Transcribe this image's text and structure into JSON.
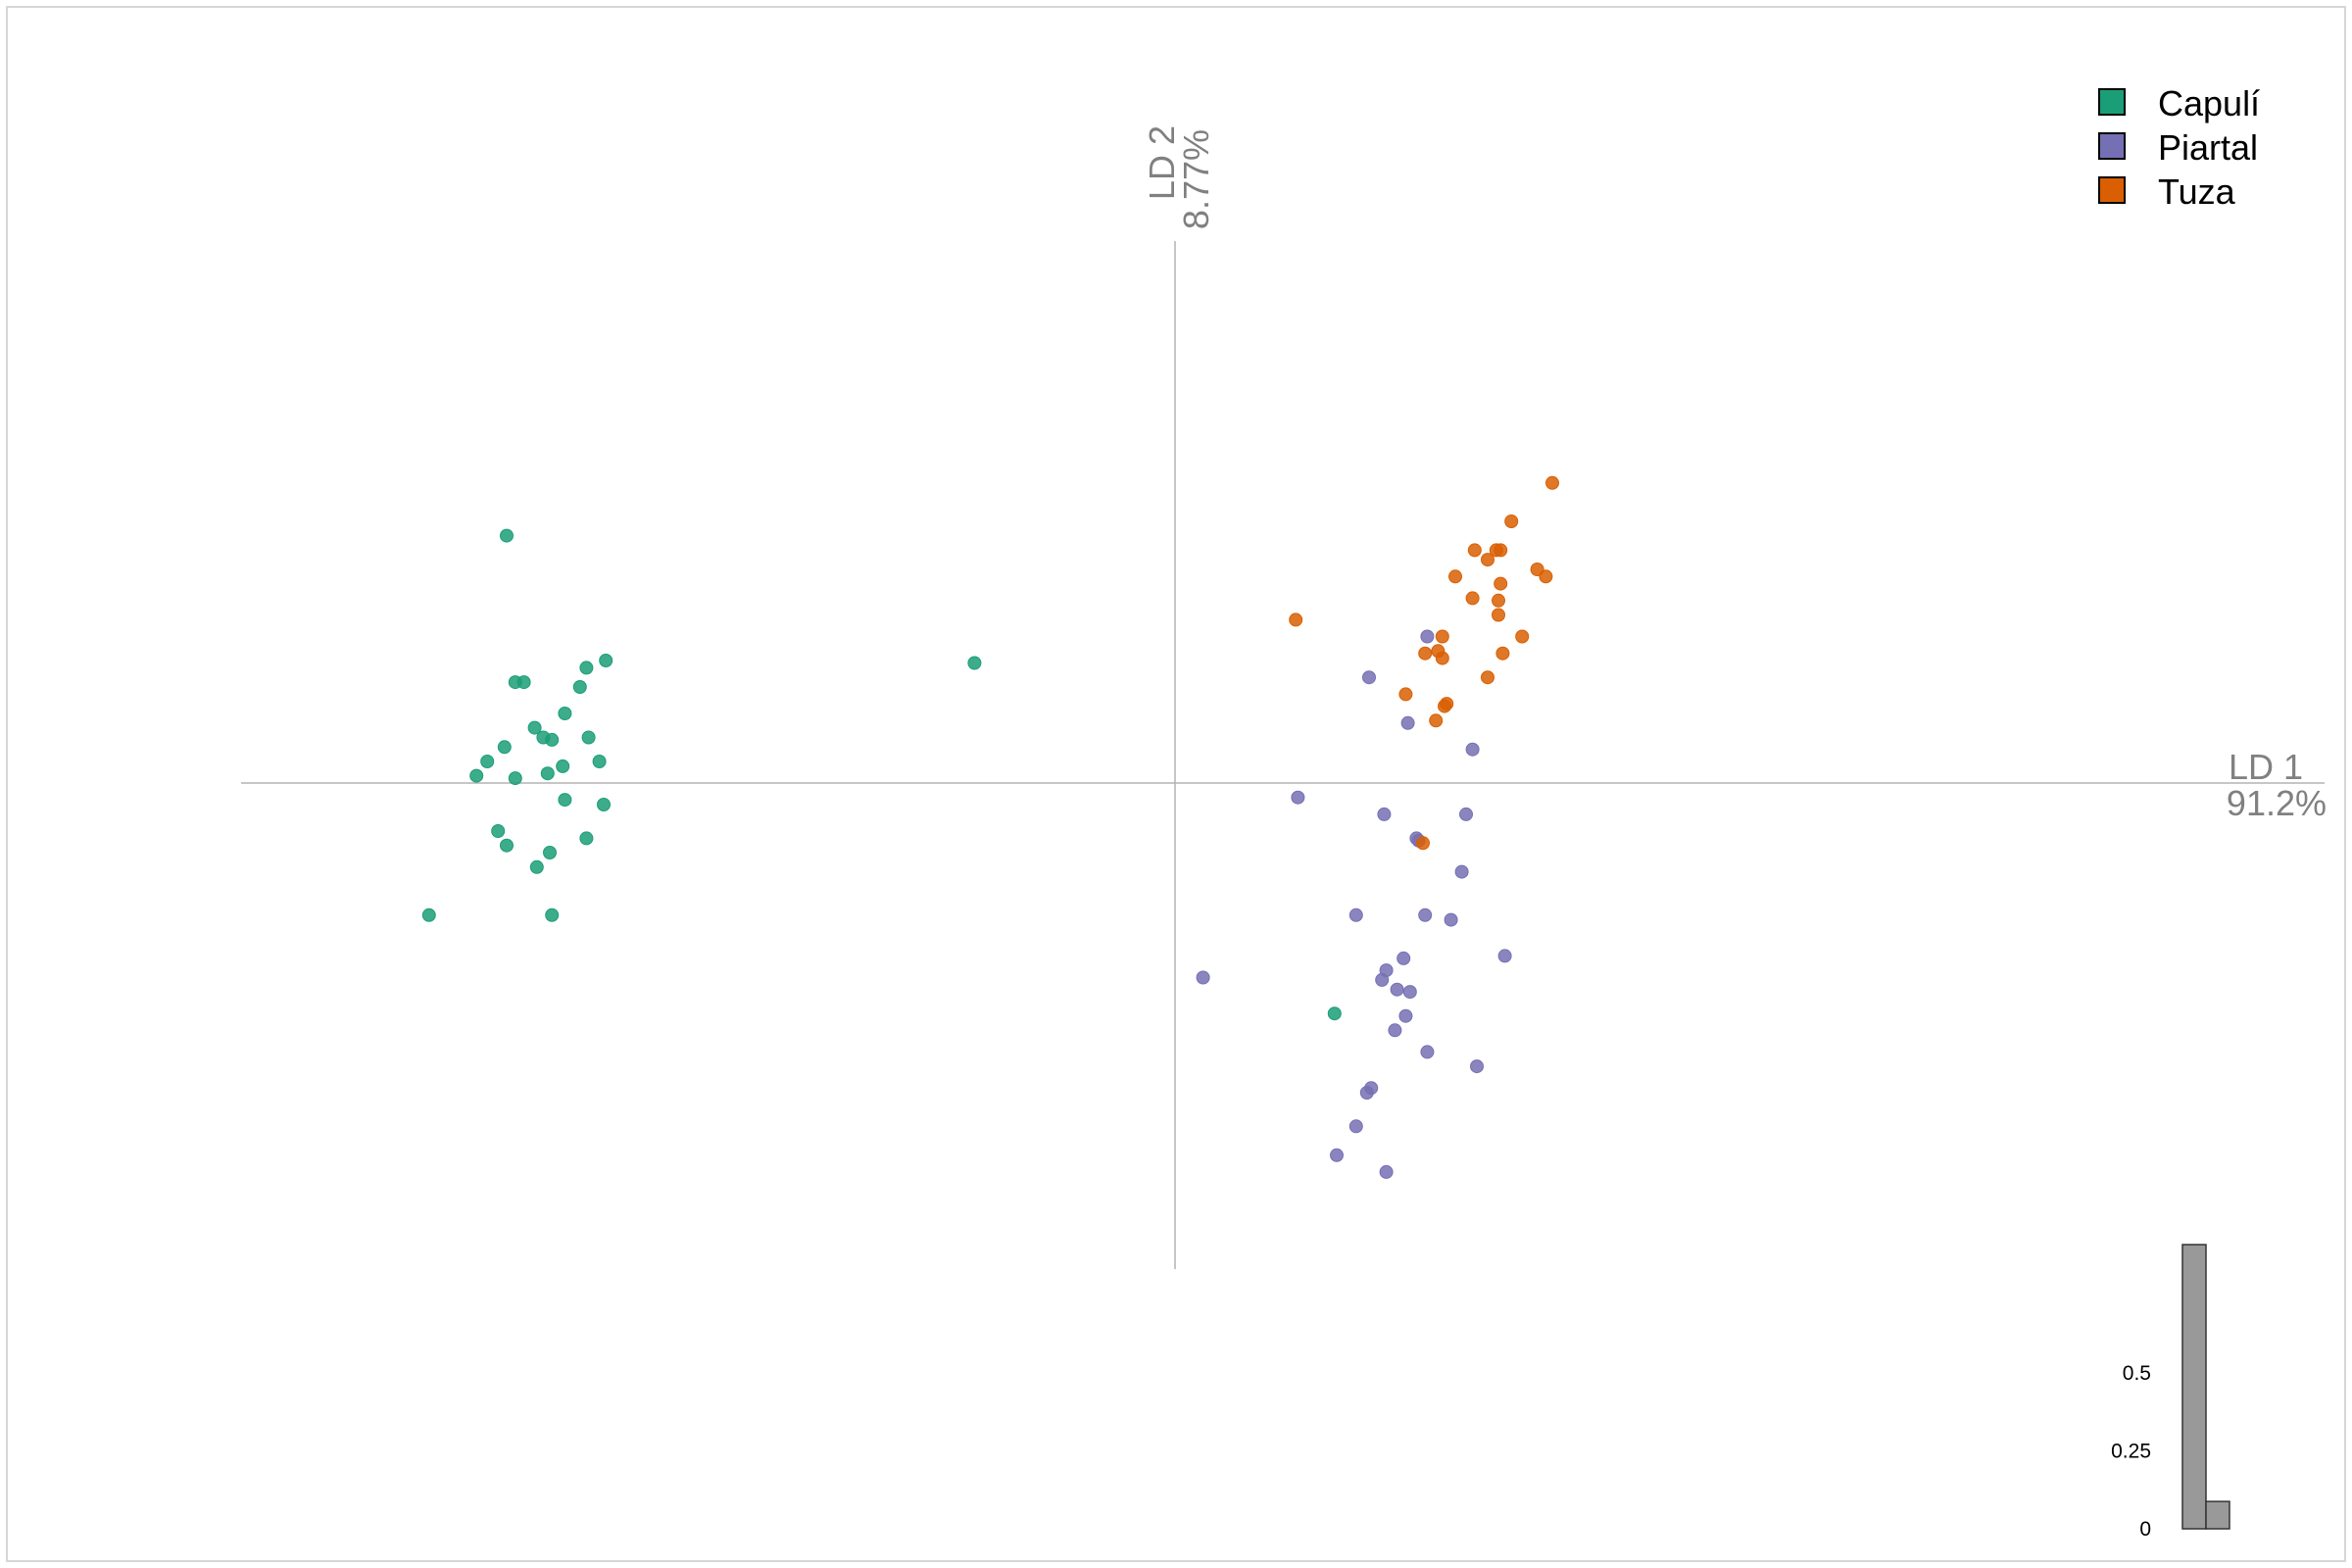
{
  "chart_data": {
    "type": "scatter",
    "title": "",
    "xlabel": {
      "name": "LD 1",
      "pct": "91.2%"
    },
    "ylabel": {
      "name": "LD 2",
      "pct": "8.77%"
    },
    "xlim": [
      -4.0,
      4.8
    ],
    "ylim": [
      -2.0,
      2.3
    ],
    "grid": false,
    "legend_position": "top-right",
    "series": [
      {
        "name": "Capulí",
        "color": "#1B9E77",
        "points": [
          [
            -3.1,
            1.03
          ],
          [
            -3.06,
            0.42
          ],
          [
            -3.02,
            0.42
          ],
          [
            -2.73,
            0.48
          ],
          [
            -2.64,
            0.51
          ],
          [
            -2.76,
            0.4
          ],
          [
            -2.83,
            0.29
          ],
          [
            -2.93,
            0.19
          ],
          [
            -2.97,
            0.23
          ],
          [
            -3.11,
            0.15
          ],
          [
            -3.19,
            0.09
          ],
          [
            -3.06,
            0.02
          ],
          [
            -2.89,
            0.18
          ],
          [
            -2.91,
            0.04
          ],
          [
            -2.84,
            0.07
          ],
          [
            -2.72,
            0.19
          ],
          [
            -2.67,
            0.09
          ],
          [
            -3.24,
            0.03
          ],
          [
            -2.83,
            -0.07
          ],
          [
            -2.65,
            -0.09
          ],
          [
            -3.14,
            -0.2
          ],
          [
            -3.1,
            -0.26
          ],
          [
            -2.96,
            -0.35
          ],
          [
            -2.9,
            -0.29
          ],
          [
            -2.73,
            -0.23
          ],
          [
            -3.46,
            -0.55
          ],
          [
            -2.89,
            -0.55
          ],
          [
            -0.93,
            0.5
          ],
          [
            0.74,
            -0.96
          ]
        ]
      },
      {
        "name": "Piartal",
        "color": "#7570B3",
        "points": [
          [
            1.17,
            0.61
          ],
          [
            0.9,
            0.44
          ],
          [
            1.08,
            0.25
          ],
          [
            1.38,
            0.14
          ],
          [
            0.57,
            -0.06
          ],
          [
            0.97,
            -0.13
          ],
          [
            1.35,
            -0.13
          ],
          [
            1.12,
            -0.23
          ],
          [
            1.13,
            -0.24
          ],
          [
            1.33,
            -0.37
          ],
          [
            0.84,
            -0.55
          ],
          [
            1.16,
            -0.55
          ],
          [
            1.28,
            -0.57
          ],
          [
            1.53,
            -0.72
          ],
          [
            1.06,
            -0.73
          ],
          [
            0.98,
            -0.78
          ],
          [
            0.96,
            -0.82
          ],
          [
            1.09,
            -0.87
          ],
          [
            0.13,
            -0.81
          ],
          [
            1.03,
            -0.86
          ],
          [
            1.07,
            -0.97
          ],
          [
            1.02,
            -1.03
          ],
          [
            1.17,
            -1.12
          ],
          [
            1.4,
            -1.18
          ],
          [
            0.91,
            -1.27
          ],
          [
            0.89,
            -1.29
          ],
          [
            0.84,
            -1.43
          ],
          [
            0.75,
            -1.55
          ],
          [
            0.98,
            -1.62
          ]
        ]
      },
      {
        "name": "Tuza",
        "color": "#D95F02",
        "points": [
          [
            1.75,
            1.25
          ],
          [
            1.56,
            1.09
          ],
          [
            1.39,
            0.97
          ],
          [
            1.49,
            0.97
          ],
          [
            1.51,
            0.97
          ],
          [
            1.45,
            0.93
          ],
          [
            1.3,
            0.86
          ],
          [
            1.72,
            0.86
          ],
          [
            1.68,
            0.89
          ],
          [
            1.51,
            0.83
          ],
          [
            1.38,
            0.77
          ],
          [
            1.5,
            0.76
          ],
          [
            1.5,
            0.7
          ],
          [
            0.56,
            0.68
          ],
          [
            1.24,
            0.61
          ],
          [
            1.61,
            0.61
          ],
          [
            1.16,
            0.54
          ],
          [
            1.24,
            0.52
          ],
          [
            1.22,
            0.55
          ],
          [
            1.52,
            0.54
          ],
          [
            1.45,
            0.44
          ],
          [
            1.07,
            0.37
          ],
          [
            1.26,
            0.33
          ],
          [
            1.25,
            0.32
          ],
          [
            1.21,
            0.26
          ],
          [
            1.15,
            -0.25
          ]
        ]
      }
    ],
    "eigenvalues": {
      "type": "bar",
      "values": [
        0.912,
        0.0877
      ],
      "yticks": [
        "0",
        "0.25",
        "0.5"
      ],
      "tick_values": [
        0,
        0.25,
        0.5
      ],
      "color": "#999999"
    }
  }
}
